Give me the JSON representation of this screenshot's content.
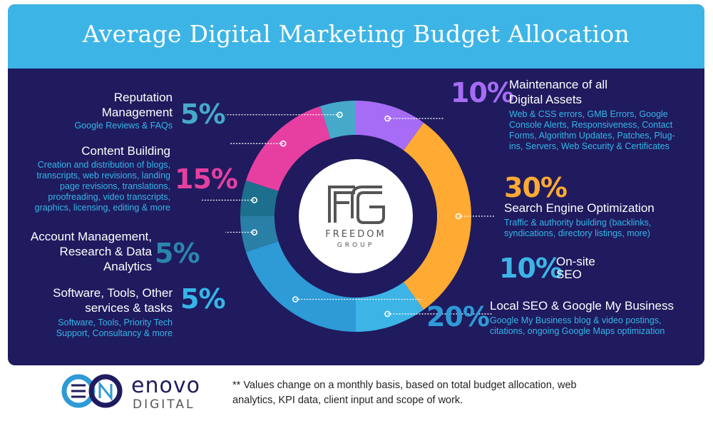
{
  "title": "Average Digital Marketing Budget Allocation",
  "center_logo": {
    "letters": "FG",
    "line1": "FREEDOM",
    "line2": "GROUP"
  },
  "footer": {
    "logo_word": "enovo",
    "logo_sub": "DIGITAL",
    "note": "** Values change on a monthly basis, based on total budget allocation, web analytics, KPI data, client input and scope of work."
  },
  "colors": {
    "maintenance": "#a66cf5",
    "seo": "#ffaa33",
    "onsite": "#3db4e6",
    "local": "#2e9ad6",
    "software": "#2a7fa6",
    "account": "#1d6f8e",
    "content": "#e63fa1",
    "reputation": "#47a9c9"
  },
  "chart_data": {
    "type": "pie",
    "donut": true,
    "title": "Average Digital Marketing Budget Allocation",
    "slices": [
      {
        "key": "maintenance",
        "value": 10,
        "label": "10%",
        "name_lines": [
          "Maintenance of all",
          "Digital Assets"
        ],
        "desc_lines": [
          "Web & CSS errors, GMB Errors, Google",
          "Console Alerts, Responsiveness, Contact",
          "Forms, Algorithm Updates, Patches, Plug-",
          "ins, Servers, Web Security & Certificates"
        ]
      },
      {
        "key": "seo",
        "value": 30,
        "label": "30%",
        "name_lines": [
          "Search Engine Optimization"
        ],
        "desc_lines": [
          "Traffic & authority building (backlinks,",
          "syndications, directory listings, more)"
        ]
      },
      {
        "key": "onsite",
        "value": 10,
        "label": "10%",
        "name_lines": [
          "On-site",
          "SEO"
        ],
        "desc_lines": []
      },
      {
        "key": "local",
        "value": 20,
        "label": "20%",
        "name_lines": [
          "Local SEO & Google My Business"
        ],
        "desc_lines": [
          "Google My Business blog & video postings,",
          "citations, ongoing Google Maps optimization"
        ]
      },
      {
        "key": "software",
        "value": 5,
        "label": "5%",
        "name_lines": [
          "Software, Tools, Other",
          "services & tasks"
        ],
        "desc_lines": [
          "Software, Tools, Priority Tech",
          "Support, Consultancy & more"
        ]
      },
      {
        "key": "account",
        "value": 5,
        "label": "5%",
        "name_lines": [
          "Account Management,",
          "Research & Data",
          "Analytics"
        ],
        "desc_lines": []
      },
      {
        "key": "content",
        "value": 15,
        "label": "15%",
        "name_lines": [
          "Content Building"
        ],
        "desc_lines": [
          "Creation and distribution of blogs,",
          "transcripts, web revisions, landing",
          "page revisions, translations,",
          "proofreading, video transcripts,",
          "graphics, licensing, editing & more"
        ]
      },
      {
        "key": "reputation",
        "value": 5,
        "label": "5%",
        "name_lines": [
          "Reputation",
          "Management"
        ],
        "desc_lines": [
          "Google Reviews & FAQs"
        ]
      }
    ]
  }
}
